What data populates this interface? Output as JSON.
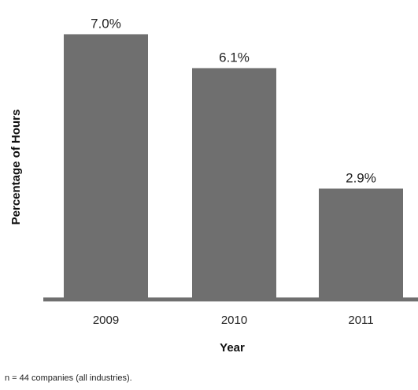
{
  "chart_data": {
    "type": "bar",
    "categories": [
      "2009",
      "2010",
      "2011"
    ],
    "values": [
      7.0,
      6.1,
      2.9
    ],
    "data_labels": [
      "7.0%",
      "6.1%",
      "2.9%"
    ],
    "xlabel": "Year",
    "ylabel": "Percentage of Hours",
    "ylim": [
      0,
      7.7
    ],
    "grid": false,
    "legend": "none",
    "bar_color": "#6f6f6f",
    "axis_color": "#6f6f6f"
  },
  "footnote": "n = 44 companies (all industries)."
}
